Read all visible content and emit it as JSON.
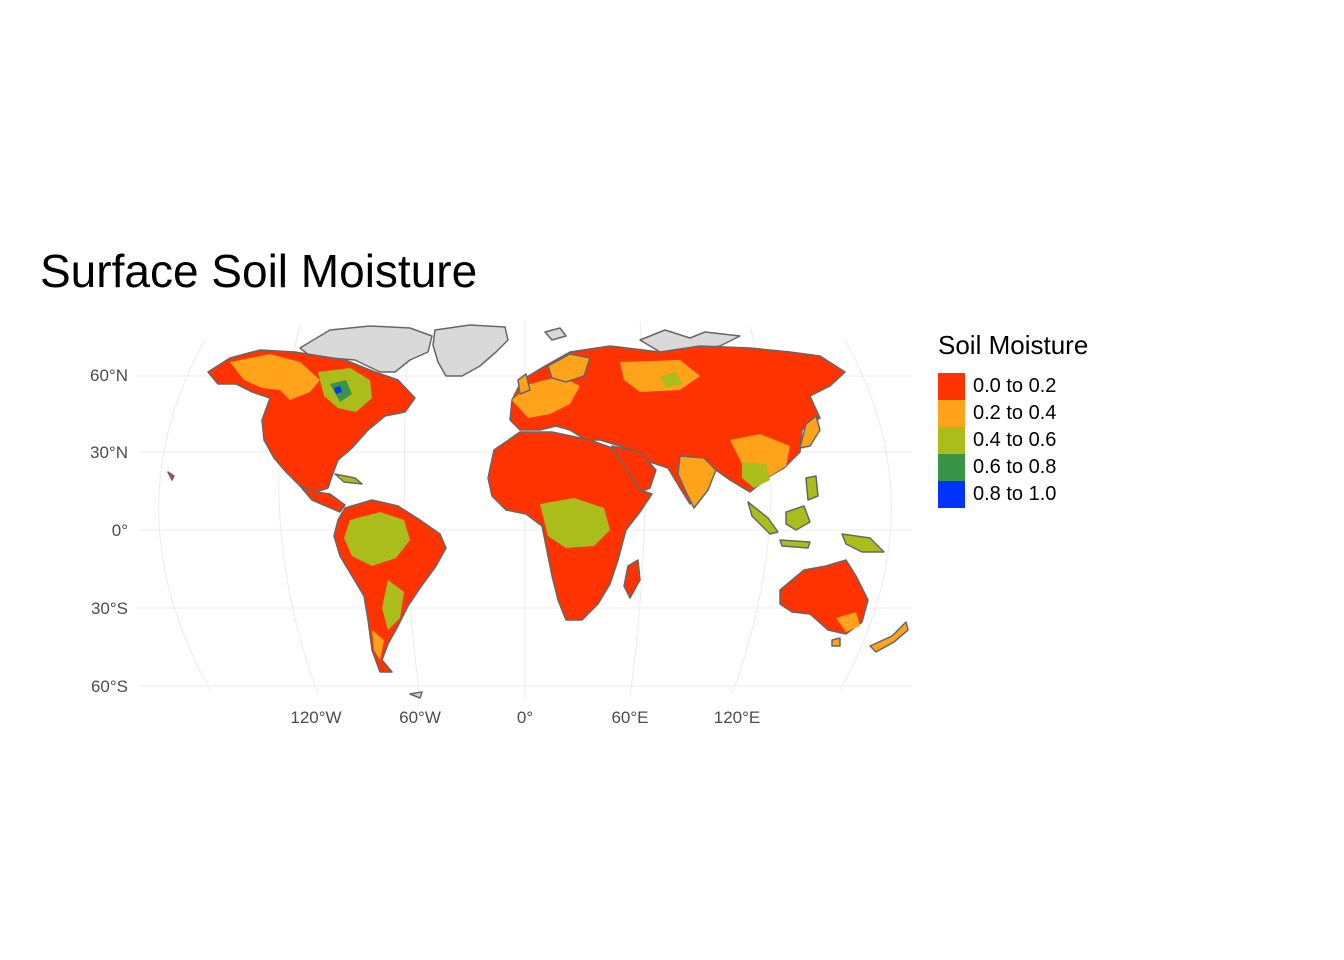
{
  "title": "Surface Soil Moisture",
  "legend": {
    "title": "Soil Moisture",
    "items": [
      {
        "label": "0.0 to 0.2",
        "color": "#ff3300"
      },
      {
        "label": "0.2 to 0.4",
        "color": "#ffa31a"
      },
      {
        "label": "0.4 to 0.6",
        "color": "#abbd1a"
      },
      {
        "label": "0.6 to 0.8",
        "color": "#3a9448"
      },
      {
        "label": "0.8 to 1.0",
        "color": "#0033ff"
      }
    ]
  },
  "axes": {
    "y_ticks": [
      "60°N",
      "30°N",
      "0°",
      "30°S",
      "60°S"
    ],
    "x_ticks": [
      "120°W",
      "60°W",
      "0°",
      "60°E",
      "120°E"
    ]
  },
  "colors": {
    "no_data": "#d9d9d9",
    "coastline": "#666666",
    "graticule": "#ebebeb"
  }
}
